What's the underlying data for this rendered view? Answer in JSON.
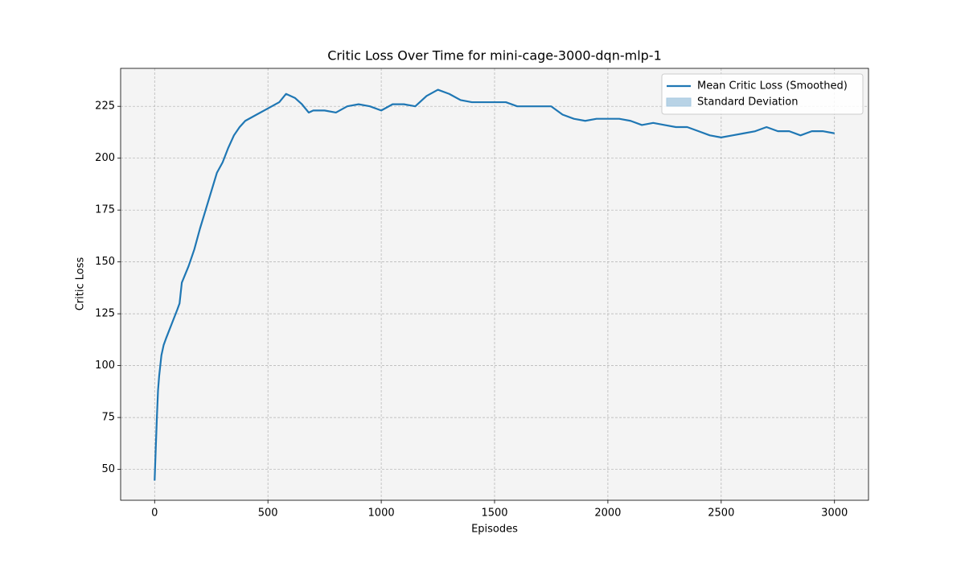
{
  "chart_data": {
    "type": "line",
    "title": "Critic Loss Over Time for mini-cage-3000-dqn-mlp-1",
    "x_label": "Episodes",
    "y_label": "Critic Loss",
    "xlim": [
      -150,
      3150
    ],
    "ylim": [
      35.1,
      243.3
    ],
    "xticks": [
      0,
      500,
      1000,
      1500,
      2000,
      2500,
      3000
    ],
    "yticks": [
      50,
      75,
      100,
      125,
      150,
      175,
      200,
      225
    ],
    "grid": true,
    "legend": "upper right",
    "x": [
      0,
      5,
      10,
      15,
      20,
      30,
      40,
      50,
      75,
      100,
      110,
      120,
      150,
      175,
      200,
      225,
      250,
      275,
      300,
      325,
      350,
      375,
      400,
      450,
      500,
      550,
      580,
      620,
      650,
      680,
      700,
      750,
      800,
      850,
      900,
      950,
      1000,
      1050,
      1100,
      1150,
      1200,
      1250,
      1300,
      1350,
      1400,
      1450,
      1500,
      1550,
      1600,
      1650,
      1700,
      1750,
      1800,
      1850,
      1900,
      1950,
      2000,
      2050,
      2100,
      2150,
      2200,
      2250,
      2300,
      2350,
      2400,
      2450,
      2500,
      2550,
      2600,
      2650,
      2700,
      2750,
      2800,
      2850,
      2900,
      2950,
      3000
    ],
    "series": [
      {
        "name": "Mean Critic Loss (Smoothed)",
        "color": "#1f77b4",
        "values": [
          44.6,
          60,
          75,
          88,
          95,
          105,
          110,
          113,
          120,
          127,
          130,
          140,
          148,
          156,
          166,
          175,
          184,
          193,
          198,
          205,
          211,
          215,
          218,
          221,
          224,
          227,
          231,
          229,
          226,
          222,
          223,
          223,
          222,
          225,
          226,
          225,
          223,
          226,
          226,
          225,
          230,
          233,
          231,
          228,
          227,
          227,
          227,
          227,
          225,
          225,
          225,
          225,
          221,
          219,
          218,
          219,
          219,
          219,
          218,
          216,
          217,
          216,
          215,
          215,
          213,
          211,
          210,
          211,
          212,
          213,
          215,
          213,
          213,
          211,
          213,
          213,
          212
        ]
      }
    ],
    "band": {
      "name": "Standard Deviation",
      "color": "#a6c8e0"
    }
  }
}
